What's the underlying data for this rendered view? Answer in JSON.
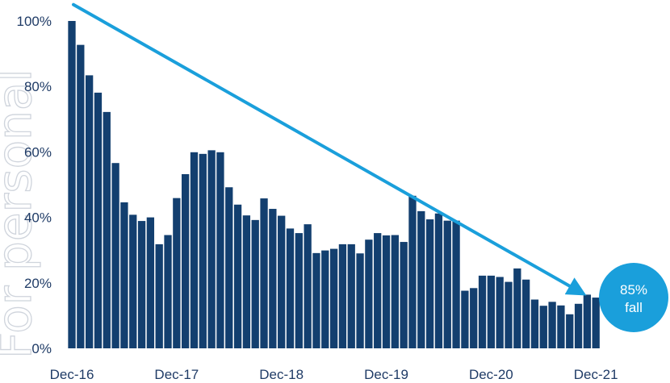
{
  "colors": {
    "bar": "#133f6f",
    "arrow": "#1a9fdb",
    "badge": "#1a9fdb",
    "text": "#1f3b66",
    "watermark": "#cfd4dc"
  },
  "watermark": "For personal",
  "badge": {
    "line1": "85%",
    "line2": "fall"
  },
  "chart_data": {
    "type": "bar",
    "ylim": [
      0,
      100
    ],
    "yticks": [
      "0%",
      "20%",
      "40%",
      "60%",
      "80%",
      "100%"
    ],
    "ytick_values": [
      0,
      20,
      40,
      60,
      80,
      100
    ],
    "xtick_labels": [
      "Dec-16",
      "Dec-17",
      "Dec-18",
      "Dec-19",
      "Dec-20",
      "Dec-21"
    ],
    "xtick_indices": [
      0,
      12,
      24,
      36,
      48,
      60
    ],
    "categories": [
      "Dec-16",
      "Jan-17",
      "Feb-17",
      "Mar-17",
      "Apr-17",
      "May-17",
      "Jun-17",
      "Jul-17",
      "Aug-17",
      "Sep-17",
      "Oct-17",
      "Nov-17",
      "Dec-17",
      "Jan-18",
      "Feb-18",
      "Mar-18",
      "Apr-18",
      "May-18",
      "Jun-18",
      "Jul-18",
      "Aug-18",
      "Sep-18",
      "Oct-18",
      "Nov-18",
      "Dec-18",
      "Jan-19",
      "Feb-19",
      "Mar-19",
      "Apr-19",
      "May-19",
      "Jun-19",
      "Jul-19",
      "Aug-19",
      "Sep-19",
      "Oct-19",
      "Nov-19",
      "Dec-19",
      "Jan-20",
      "Feb-20",
      "Mar-20",
      "Apr-20",
      "May-20",
      "Jun-20",
      "Jul-20",
      "Aug-20",
      "Sep-20",
      "Oct-20",
      "Nov-20",
      "Dec-20",
      "Jan-21",
      "Feb-21",
      "Mar-21",
      "Apr-21",
      "May-21",
      "Jun-21",
      "Jul-21",
      "Aug-21",
      "Sep-21",
      "Oct-21",
      "Nov-21",
      "Dec-21"
    ],
    "values": [
      100,
      92.7,
      83.4,
      78.1,
      72.2,
      56.6,
      44.6,
      40.8,
      38.9,
      40.0,
      31.8,
      34.6,
      45.9,
      53.2,
      59.9,
      59.4,
      60.5,
      59.9,
      49.2,
      43.9,
      40.6,
      39.2,
      45.8,
      42.6,
      40.5,
      36.6,
      35.2,
      37.9,
      29.1,
      29.9,
      30.4,
      31.8,
      31.8,
      29.0,
      33.2,
      35.2,
      34.5,
      34.6,
      32.5,
      46.6,
      41.9,
      39.4,
      41.2,
      39.0,
      39.0,
      17.6,
      18.4,
      22.2,
      22.2,
      21.8,
      20.3,
      24.4,
      21.0,
      14.9,
      13.0,
      14.2,
      13.1,
      10.4,
      13.6,
      16.4,
      15.5
    ],
    "annotation": {
      "type": "trend-arrow",
      "from_index": 0,
      "from_value": 105,
      "to_index": 60,
      "to_value": 17
    }
  }
}
